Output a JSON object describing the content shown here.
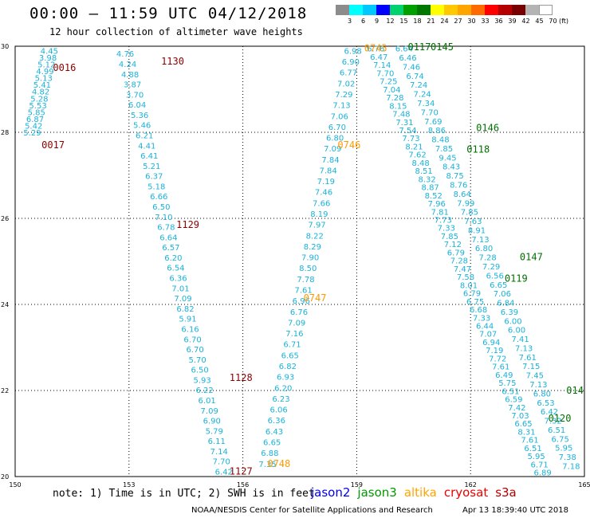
{
  "header": {
    "title": "00:00 – 11:59 UTC 04/12/2018",
    "subtitle": "12 hour collection of altimeter wave heights"
  },
  "colorbar": {
    "unit": "(ft)",
    "labels": [
      "3",
      "6",
      "9",
      "12",
      "15",
      "18",
      "21",
      "24",
      "27",
      "30",
      "33",
      "36",
      "39",
      "42",
      "45",
      "70"
    ],
    "colors": [
      "#8c8c8c",
      "#00ffff",
      "#00c8ff",
      "#0000ff",
      "#00d26e",
      "#00a000",
      "#007800",
      "#ffff00",
      "#ffc800",
      "#ffa500",
      "#ff6a00",
      "#ff0000",
      "#b40000",
      "#780000",
      "#b4b4b4",
      "#ffffff"
    ]
  },
  "footer": {
    "note": "note: 1) Time is in UTC; 2) SWH is in feet",
    "credit": "NOAA/NESDIS Center for Satellite Applications and Research",
    "stamp": "Apr 13 18:39:40 UTC 2018",
    "legend": [
      {
        "name": "jason2",
        "color": "#0000ee"
      },
      {
        "name": "jason3",
        "color": "#009a00"
      },
      {
        "name": "altika",
        "color": "#ffa500"
      },
      {
        "name": "cryosat",
        "color": "#ee0000"
      },
      {
        "name": "s3a",
        "color": "#b40000"
      }
    ]
  },
  "chart_data": {
    "type": "scatter",
    "xlim": [
      150,
      165
    ],
    "ylim": [
      20,
      30
    ],
    "xticks": [
      150,
      153,
      156,
      159,
      162,
      165
    ],
    "yticks": [
      20,
      22,
      24,
      26,
      28,
      30
    ],
    "grid": true,
    "value_color": "#1ab2d8",
    "tracks": [
      {
        "values": [
          "4.45",
          "3.98",
          "5.12",
          "4.99",
          "5.13",
          "5.41",
          "4.82",
          "5.28",
          "5.53",
          "5.85",
          "6.87",
          "5.42",
          "5.29"
        ],
        "x_start": 150.9,
        "y_start": 29.9,
        "x_end": 150.45,
        "y_end": 28.0
      },
      {
        "values": [
          "4.76",
          "4.24",
          "4.88",
          "3.87",
          "3.70",
          "6.04",
          "5.36",
          "5.46",
          "6.21",
          "4.41",
          "6.41",
          "5.21",
          "6.37",
          "5.18",
          "6.66",
          "6.50",
          "7.10",
          "6.78",
          "6.64",
          "6.57",
          "6.20",
          "6.54",
          "6.36",
          "7.01",
          "7.09",
          "6.82",
          "5.91",
          "6.16",
          "6.70",
          "6.70",
          "5.70",
          "6.50",
          "5.93",
          "6.22",
          "6.01",
          "7.09",
          "6.90",
          "5.79",
          "6.11",
          "7.14",
          "7.70",
          "6.42"
        ],
        "x_start": 152.9,
        "y_start": 29.83,
        "x_end": 155.5,
        "y_end": 20.12
      },
      {
        "values": [
          "7.35",
          "6.88",
          "6.65",
          "6.43",
          "6.36",
          "6.06",
          "6.23",
          "6.20",
          "6.93",
          "6.82",
          "6.65",
          "6.71",
          "7.16",
          "7.09",
          "6.76",
          "6.96",
          "7.61",
          "7.78",
          "8.50",
          "7.90",
          "8.29",
          "8.22",
          "7.97",
          "8.19",
          "7.66",
          "7.46",
          "7.19",
          "7.84",
          "7.84",
          "7.09",
          "6.80",
          "6.70",
          "7.06",
          "7.13",
          "7.29",
          "7.02",
          "6.77",
          "6.90",
          "6.98"
        ],
        "x_start": 156.65,
        "y_start": 20.3,
        "x_end": 158.9,
        "y_end": 29.9
      },
      {
        "values": [
          "6.76",
          "6.47",
          "7.14",
          "7.70",
          "7.25",
          "7.04",
          "7.28",
          "8.15",
          "7.48",
          "7.31",
          "7.54",
          "7.73",
          "8.21",
          "7.62",
          "8.48",
          "8.51",
          "8.32",
          "8.87",
          "8.52",
          "7.96",
          "7.81",
          "7.73",
          "7.33",
          "7.85",
          "7.12",
          "6.79",
          "7.28",
          "7.47",
          "7.58",
          "8.01",
          "6.79",
          "6.75",
          "6.68",
          "7.33",
          "6.44",
          "7.07",
          "6.94",
          "7.19",
          "7.72",
          "7.61",
          "6.49",
          "5.75",
          "6.51",
          "6.59",
          "7.42",
          "7.03",
          "6.65",
          "8.31",
          "7.61",
          "6.51",
          "5.95",
          "6.71",
          "6.89"
        ],
        "x_start": 159.5,
        "y_start": 29.95,
        "x_end": 163.9,
        "y_end": 20.1
      },
      {
        "values": [
          "6.64",
          "6.46",
          "7.46",
          "6.74",
          "7.24",
          "7.24",
          "7.34",
          "7.70",
          "7.69",
          "8.86",
          "8.48",
          "7.85",
          "9.45",
          "8.43",
          "8.75",
          "8.76",
          "8.64",
          "7.99",
          "7.85",
          "7.63",
          "8.91",
          "7.13",
          "6.80",
          "7.28",
          "7.29",
          "6.56",
          "6.65",
          "7.06",
          "6.84",
          "6.39",
          "6.00",
          "6.00",
          "7.41",
          "7.13",
          "7.61",
          "7.15",
          "7.45",
          "7.13",
          "6.80",
          "6.53",
          "6.42",
          "7.32",
          "6.51",
          "6.75",
          "5.95",
          "7.38",
          "7.18"
        ],
        "x_start": 160.25,
        "y_start": 29.95,
        "x_end": 164.65,
        "y_end": 20.25
      }
    ],
    "time_labels": [
      {
        "text": "0016",
        "x": 151.3,
        "y": 29.5,
        "color": "#8b0000"
      },
      {
        "text": "0017",
        "x": 151.0,
        "y": 27.7,
        "color": "#8b0000"
      },
      {
        "text": "1130",
        "x": 154.15,
        "y": 29.65,
        "color": "#8b0000"
      },
      {
        "text": "1129",
        "x": 154.55,
        "y": 25.85,
        "color": "#8b0000"
      },
      {
        "text": "1128",
        "x": 155.95,
        "y": 22.3,
        "color": "#8b0000"
      },
      {
        "text": "1127",
        "x": 155.95,
        "y": 20.12,
        "color": "#8b0000"
      },
      {
        "text": "0745",
        "x": 159.5,
        "y": 29.95,
        "color": "#ff9900"
      },
      {
        "text": "0746",
        "x": 158.8,
        "y": 27.7,
        "color": "#ff9900"
      },
      {
        "text": "0747",
        "x": 157.9,
        "y": 24.15,
        "color": "#ff9900"
      },
      {
        "text": "0748",
        "x": 156.95,
        "y": 20.3,
        "color": "#ff9900"
      },
      {
        "text": "0117",
        "x": 160.65,
        "y": 29.98,
        "color": "#007000"
      },
      {
        "text": "0145",
        "x": 161.25,
        "y": 29.98,
        "color": "#007000"
      },
      {
        "text": "0146",
        "x": 162.45,
        "y": 28.1,
        "color": "#007000"
      },
      {
        "text": "0118",
        "x": 162.2,
        "y": 27.6,
        "color": "#007000"
      },
      {
        "text": "0147",
        "x": 163.6,
        "y": 25.1,
        "color": "#007000"
      },
      {
        "text": "0119",
        "x": 163.2,
        "y": 24.6,
        "color": "#007000"
      },
      {
        "text": "014",
        "x": 164.75,
        "y": 22.0,
        "color": "#007000"
      },
      {
        "text": "0120",
        "x": 164.35,
        "y": 21.35,
        "color": "#007000"
      }
    ]
  }
}
